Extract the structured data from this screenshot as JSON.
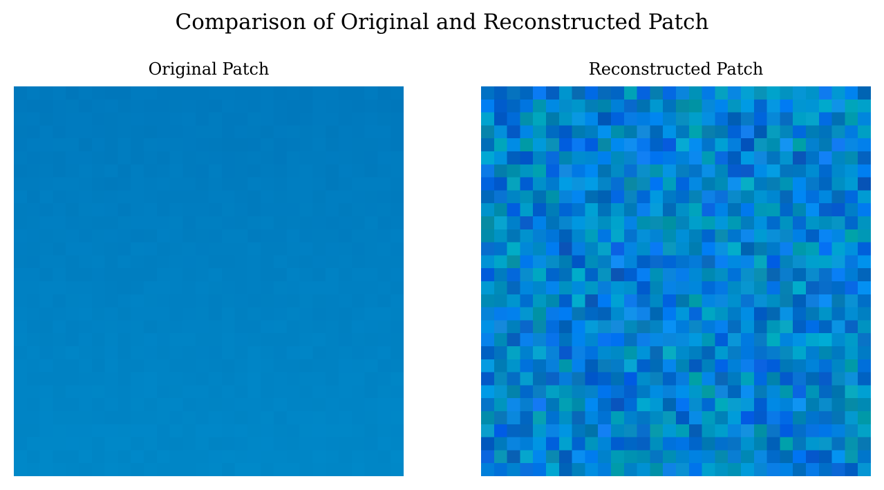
{
  "title": "Comparison of Original and Reconstructed Patch",
  "panels": {
    "original": {
      "title": "Original Patch",
      "grid_size": 30,
      "base_color_top": "#0079bd",
      "base_color_bottom": "#0087c7",
      "variation": 4
    },
    "reconstructed": {
      "title": "Reconstructed Patch",
      "grid_size": 30,
      "base_color": "#0082c8",
      "palette": [
        "#0070c0",
        "#0088cc",
        "#0090d8",
        "#007ee6",
        "#0068d8",
        "#0080b8",
        "#0096b0",
        "#0a86e8",
        "#00a0c8",
        "#0060c0"
      ],
      "variation": 28
    }
  }
}
